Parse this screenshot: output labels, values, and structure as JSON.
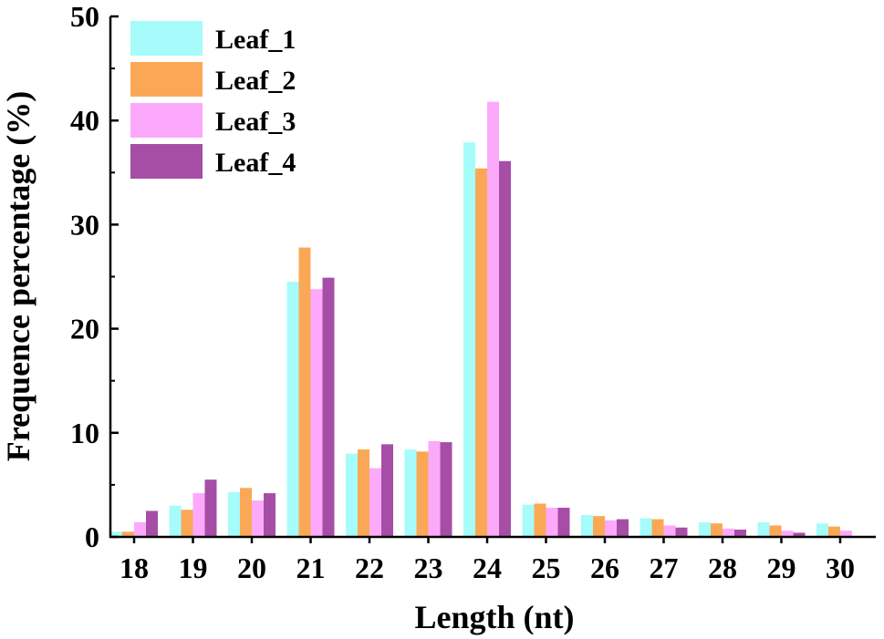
{
  "chart_data": {
    "type": "bar",
    "title": "",
    "xlabel": "Length (nt)",
    "ylabel": "Frequence percentage (%)",
    "ylim": [
      0,
      50
    ],
    "yticks": [
      "0",
      "10",
      "20",
      "30",
      "40",
      "50"
    ],
    "categories": [
      "18",
      "19",
      "20",
      "21",
      "22",
      "23",
      "24",
      "25",
      "26",
      "27",
      "28",
      "29",
      "30"
    ],
    "legend_position": "top-left",
    "grid": false,
    "series": [
      {
        "name": "Leaf_1",
        "color": "#a6fbfb",
        "values": [
          0.5,
          3.0,
          4.3,
          24.5,
          8.0,
          8.4,
          37.9,
          3.1,
          2.1,
          1.8,
          1.4,
          1.4,
          1.3
        ]
      },
      {
        "name": "Leaf_2",
        "color": "#fba856",
        "values": [
          0.5,
          2.6,
          4.7,
          27.8,
          8.4,
          8.2,
          35.4,
          3.2,
          2.0,
          1.7,
          1.3,
          1.1,
          1.0
        ]
      },
      {
        "name": "Leaf_3",
        "color": "#fda9fb",
        "values": [
          1.4,
          4.2,
          3.5,
          23.8,
          6.6,
          9.2,
          41.8,
          2.8,
          1.6,
          1.1,
          0.8,
          0.6,
          0.6
        ]
      },
      {
        "name": "Leaf_4",
        "color": "#a64ea6",
        "values": [
          2.5,
          5.5,
          4.2,
          24.9,
          8.9,
          9.1,
          36.1,
          2.8,
          1.7,
          0.9,
          0.7,
          0.4,
          0.0
        ]
      }
    ]
  }
}
